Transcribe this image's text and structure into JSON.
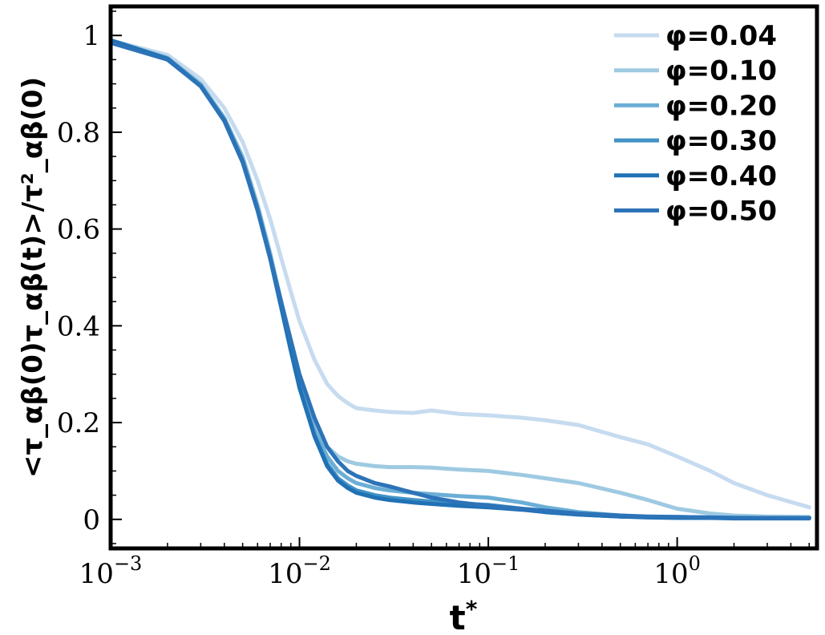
{
  "chart_data": {
    "type": "line",
    "xscale": "log",
    "xlim": [
      0.001,
      5.5
    ],
    "ylim": [
      -0.06,
      1.06
    ],
    "xlabel_main": "t",
    "xlabel_sup": "*",
    "ylabel": "<τ_αβ(0)τ_αβ(t)>/τ²_αβ(0)",
    "xticks": [
      {
        "value": 0.001,
        "base": "10",
        "exp": "−3"
      },
      {
        "value": 0.01,
        "base": "10",
        "exp": "−2"
      },
      {
        "value": 0.1,
        "base": "10",
        "exp": "−1"
      },
      {
        "value": 1,
        "base": "10",
        "exp": "0"
      }
    ],
    "yticks": [
      {
        "value": 0,
        "label": "0"
      },
      {
        "value": 0.2,
        "label": "0.2"
      },
      {
        "value": 0.4,
        "label": "0.4"
      },
      {
        "value": 0.6,
        "label": "0.6"
      },
      {
        "value": 0.8,
        "label": "0.8"
      },
      {
        "value": 1.0,
        "label": "1"
      }
    ],
    "legend_position": "top-right",
    "grid": false,
    "series": [
      {
        "name": "φ=0.04",
        "color": "#c6dbef",
        "x": [
          0.001,
          0.002,
          0.003,
          0.004,
          0.005,
          0.006,
          0.007,
          0.008,
          0.009,
          0.01,
          0.012,
          0.014,
          0.016,
          0.018,
          0.02,
          0.025,
          0.03,
          0.04,
          0.05,
          0.07,
          0.1,
          0.15,
          0.2,
          0.3,
          0.5,
          0.7,
          1.0,
          1.5,
          2.0,
          3.0,
          5.0
        ],
        "y": [
          0.99,
          0.96,
          0.91,
          0.85,
          0.78,
          0.7,
          0.62,
          0.54,
          0.47,
          0.41,
          0.33,
          0.28,
          0.255,
          0.24,
          0.23,
          0.225,
          0.222,
          0.22,
          0.225,
          0.218,
          0.215,
          0.21,
          0.205,
          0.195,
          0.17,
          0.155,
          0.13,
          0.1,
          0.075,
          0.05,
          0.025
        ]
      },
      {
        "name": "φ=0.10",
        "color": "#9ecae1",
        "x": [
          0.001,
          0.002,
          0.003,
          0.004,
          0.005,
          0.006,
          0.007,
          0.008,
          0.009,
          0.01,
          0.012,
          0.014,
          0.016,
          0.018,
          0.02,
          0.025,
          0.03,
          0.04,
          0.05,
          0.07,
          0.1,
          0.15,
          0.2,
          0.3,
          0.5,
          0.7,
          1.0,
          1.5,
          2.0,
          3.0,
          5.0
        ],
        "y": [
          0.99,
          0.955,
          0.9,
          0.83,
          0.75,
          0.65,
          0.55,
          0.45,
          0.36,
          0.29,
          0.2,
          0.15,
          0.13,
          0.12,
          0.115,
          0.11,
          0.108,
          0.108,
          0.107,
          0.103,
          0.1,
          0.092,
          0.085,
          0.075,
          0.055,
          0.04,
          0.022,
          0.012,
          0.008,
          0.006,
          0.005
        ]
      },
      {
        "name": "φ=0.20",
        "color": "#6baed6",
        "x": [
          0.001,
          0.002,
          0.003,
          0.004,
          0.005,
          0.006,
          0.007,
          0.008,
          0.009,
          0.01,
          0.012,
          0.014,
          0.016,
          0.018,
          0.02,
          0.025,
          0.03,
          0.04,
          0.05,
          0.07,
          0.1,
          0.15,
          0.2,
          0.3,
          0.5,
          0.7,
          1.0,
          1.5,
          2.0,
          3.0,
          5.0
        ],
        "y": [
          0.99,
          0.953,
          0.898,
          0.828,
          0.745,
          0.645,
          0.545,
          0.445,
          0.355,
          0.28,
          0.185,
          0.13,
          0.1,
          0.085,
          0.075,
          0.065,
          0.06,
          0.055,
          0.052,
          0.048,
          0.045,
          0.035,
          0.025,
          0.015,
          0.008,
          0.005,
          0.005,
          0.004,
          0.004,
          0.003,
          0.003
        ]
      },
      {
        "name": "φ=0.30",
        "color": "#4292c6",
        "x": [
          0.001,
          0.002,
          0.003,
          0.004,
          0.005,
          0.006,
          0.007,
          0.008,
          0.009,
          0.01,
          0.012,
          0.014,
          0.016,
          0.018,
          0.02,
          0.025,
          0.03,
          0.04,
          0.05,
          0.07,
          0.1,
          0.15,
          0.2,
          0.3,
          0.5,
          0.7,
          1.0,
          1.5,
          2.0,
          3.0,
          5.0
        ],
        "y": [
          0.99,
          0.952,
          0.896,
          0.825,
          0.74,
          0.64,
          0.54,
          0.44,
          0.35,
          0.275,
          0.175,
          0.115,
          0.085,
          0.07,
          0.06,
          0.05,
          0.045,
          0.04,
          0.037,
          0.033,
          0.03,
          0.022,
          0.015,
          0.01,
          0.006,
          0.005,
          0.004,
          0.004,
          0.003,
          0.003,
          0.003
        ]
      },
      {
        "name": "φ=0.40",
        "color": "#2171b5",
        "x": [
          0.001,
          0.002,
          0.003,
          0.004,
          0.005,
          0.006,
          0.007,
          0.008,
          0.009,
          0.01,
          0.012,
          0.014,
          0.016,
          0.018,
          0.02,
          0.025,
          0.03,
          0.04,
          0.05,
          0.07,
          0.1,
          0.15,
          0.2,
          0.3,
          0.5,
          0.7,
          1.0,
          1.5,
          2.0,
          3.0,
          5.0
        ],
        "y": [
          0.99,
          0.952,
          0.895,
          0.823,
          0.738,
          0.638,
          0.538,
          0.438,
          0.348,
          0.272,
          0.172,
          0.11,
          0.08,
          0.065,
          0.055,
          0.045,
          0.04,
          0.035,
          0.032,
          0.028,
          0.025,
          0.02,
          0.015,
          0.01,
          0.006,
          0.004,
          0.003,
          0.003,
          0.002,
          0.002,
          0.002
        ]
      },
      {
        "name": "φ=0.50",
        "color": "#2c73b8",
        "x": [
          0.001,
          0.002,
          0.003,
          0.004,
          0.005,
          0.006,
          0.007,
          0.008,
          0.009,
          0.01,
          0.012,
          0.014,
          0.016,
          0.018,
          0.02,
          0.025,
          0.03,
          0.04,
          0.05,
          0.07,
          0.1,
          0.15,
          0.2,
          0.3,
          0.5,
          0.7,
          1.0,
          1.5,
          2.0,
          3.0,
          5.0
        ],
        "y": [
          0.985,
          0.95,
          0.895,
          0.825,
          0.74,
          0.64,
          0.54,
          0.45,
          0.37,
          0.3,
          0.21,
          0.15,
          0.12,
          0.1,
          0.09,
          0.075,
          0.068,
          0.055,
          0.045,
          0.035,
          0.028,
          0.022,
          0.018,
          0.012,
          0.008,
          0.006,
          0.005,
          0.004,
          0.003,
          0.003,
          0.003
        ]
      }
    ]
  }
}
